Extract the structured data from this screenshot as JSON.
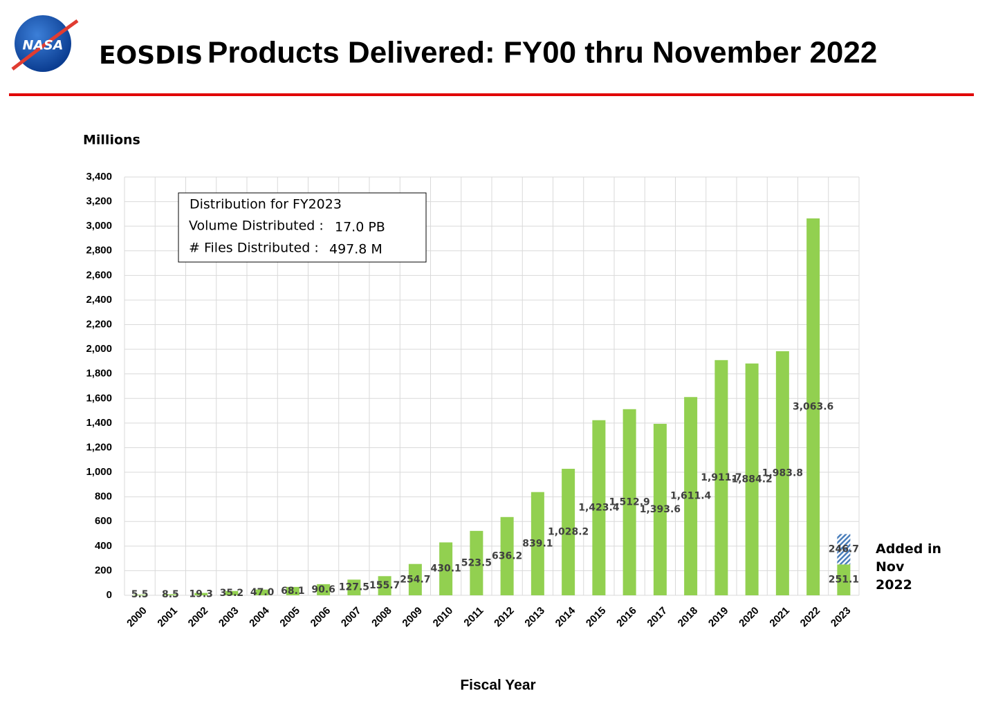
{
  "logo_text": "NASA",
  "chart_data": {
    "type": "bar",
    "stacked": true,
    "title_parts": [
      "EOSDIS",
      "Products Delivered: FY00 thru November 2022"
    ],
    "y_axis_label": "Millions",
    "x_axis_label": "Fiscal Year",
    "info_box": {
      "heading": "Distribution for FY2023",
      "rows": [
        [
          "Volume Distributed :",
          "17.0 PB"
        ],
        [
          "# Files Distributed :",
          "497.8 M"
        ]
      ]
    },
    "categories": [
      "2000",
      "2001",
      "2002",
      "2003",
      "2004",
      "2005",
      "2006",
      "2007",
      "2008",
      "2009",
      "2010",
      "2011",
      "2012",
      "2013",
      "2014",
      "2015",
      "2016",
      "2017",
      "2018",
      "2019",
      "2020",
      "2021",
      "2022",
      "2023"
    ],
    "series": [
      {
        "color": "#92d050",
        "values": [
          5.5,
          8.5,
          19.3,
          35.2,
          47.0,
          68.1,
          90.6,
          127.5,
          155.7,
          254.7,
          430.1,
          523.5,
          636.2,
          839.1,
          1028.2,
          1423.4,
          1512.9,
          1393.6,
          1611.4,
          1911.7,
          1884.2,
          1983.8,
          3063.6,
          251.1
        ],
        "value_labels": [
          "5.5",
          "8.5",
          "19.3",
          "35.2",
          "47.0",
          "68.1",
          "90.6",
          "127.5",
          "155.7",
          "254.7",
          "430.1",
          "523.5",
          "636.2",
          "839.1",
          "1,028.2",
          "1,423.4",
          "1,512.9",
          "1,393.6",
          "1,611.4",
          "1,911.7",
          "1,884.2",
          "1,983.8",
          "3,063.6",
          "251.1"
        ]
      },
      {
        "name": "Added in Nov 2022",
        "color": "#4a7ebb",
        "pattern": "hatch",
        "values": [
          null,
          null,
          null,
          null,
          null,
          null,
          null,
          null,
          null,
          null,
          null,
          null,
          null,
          null,
          null,
          null,
          null,
          null,
          null,
          null,
          null,
          null,
          null,
          246.7
        ],
        "value_labels": [
          null,
          null,
          null,
          null,
          null,
          null,
          null,
          null,
          null,
          null,
          null,
          null,
          null,
          null,
          null,
          null,
          null,
          null,
          null,
          null,
          null,
          null,
          null,
          "246.7"
        ]
      }
    ],
    "ylim": [
      0,
      3400
    ],
    "yticks": [
      0,
      200,
      400,
      600,
      800,
      {
        "value": 1000,
        "label": "1,000"
      },
      {
        "value": 1200,
        "label": "1,200"
      },
      {
        "value": 1400,
        "label": "1,400"
      },
      {
        "value": 1600,
        "label": "1,600"
      },
      {
        "value": 1800,
        "label": "1,800"
      },
      {
        "value": 2000,
        "label": "2,000"
      },
      {
        "value": 2200,
        "label": "2,200"
      },
      {
        "value": 2400,
        "label": "2,400"
      },
      {
        "value": 2600,
        "label": "2,600"
      },
      {
        "value": 2800,
        "label": "2,800"
      },
      {
        "value": 3000,
        "label": "3,000"
      },
      {
        "value": 3200,
        "label": "3,200"
      },
      {
        "value": 3400,
        "label": "3,400"
      }
    ],
    "grid": true
  }
}
